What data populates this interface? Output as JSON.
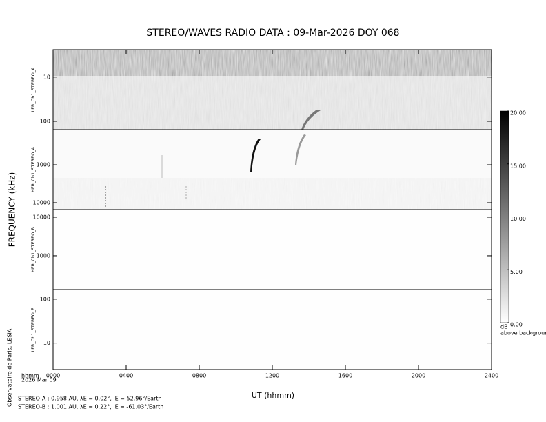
{
  "chart_data": {
    "type": "spectrogram",
    "title": "STEREO/WAVES  RADIO  DATA : 09-Mar-2026  DOY 068",
    "ylabel": "FREQUENCY (kHz)",
    "xlabel": "UT (hhmm)",
    "xlim": [
      0,
      2400
    ],
    "xticks": [
      {
        "value": 0,
        "label": "0000"
      },
      {
        "value": 400,
        "label": "0400"
      },
      {
        "value": 800,
        "label": "0800"
      },
      1200,
      1600,
      2000,
      2400
    ],
    "x_unit_label": "hhmm",
    "date_label": "2026 Mar 09",
    "credit": "Observatoire de Paris, LESIA",
    "panels": [
      {
        "label": "LFR_Ch1_STEREO_A",
        "log": true,
        "ylim": [
          154,
          2.4
        ],
        "yticks": [
          10,
          100
        ]
      },
      {
        "label": "HFR_Ch1_STEREO_A",
        "log": true,
        "ylim": [
          15200,
          118
        ],
        "yticks": [
          1000,
          10000
        ]
      },
      {
        "label": "HFR_Ch1_STEREO_B",
        "log": true,
        "ylim": [
          133,
          15700
        ],
        "yticks": [
          10000,
          1000
        ]
      },
      {
        "label": "LFR_Ch1_STEREO_B",
        "log": true,
        "ylim": [
          2.5,
          165
        ],
        "yticks": [
          100,
          10
        ]
      }
    ],
    "colorbar": {
      "clim": [
        0,
        20
      ],
      "ticks": [
        {
          "value": 0,
          "label": "0.00"
        },
        {
          "value": 5,
          "label": "5.00"
        },
        {
          "value": 10,
          "label": "10.00"
        },
        {
          "value": 15,
          "label": "15.00"
        },
        {
          "value": 20,
          "label": "20.00"
        }
      ],
      "unit": "dB",
      "note": "above background"
    },
    "footer": [
      "STEREO-A : 0.958 AU, λE = 0.02°, lE = 52.96°/Earth",
      "STEREO-B : 1.001 AU, λE = 0.22°, lE = -61.03°/Earth"
    ]
  }
}
